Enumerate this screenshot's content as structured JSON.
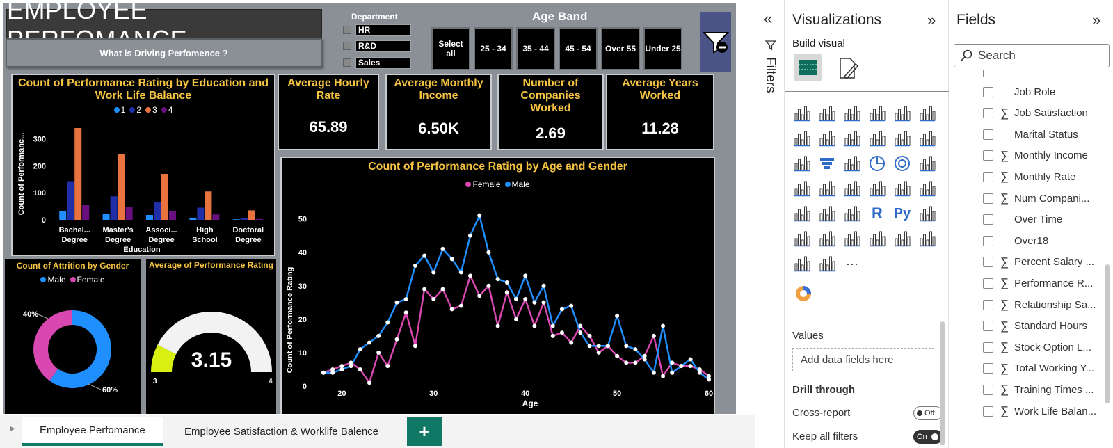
{
  "report": {
    "title": "EMPLOYEE PERFOMANCE",
    "subtitle": "What is Driving Perfomence ?"
  },
  "department": {
    "title": "Department",
    "items": [
      "HR",
      "R&D",
      "Sales"
    ]
  },
  "age_band": {
    "title": "Age Band",
    "buttons": [
      "Select all",
      "25 - 34",
      "35 - 44",
      "45 - 54",
      "Over 55",
      "Under 25"
    ]
  },
  "kpis": [
    {
      "title": "Average Hourly Rate",
      "value": "65.89"
    },
    {
      "title": "Average Monthly Income",
      "value": "6.50K"
    },
    {
      "title": "Number of Companies Worked",
      "value": "2.69"
    },
    {
      "title": "Average Years Worked",
      "value": "11.28"
    }
  ],
  "colors": {
    "rating1": "#1f8fff",
    "rating2": "#1f2fa8",
    "rating3": "#e8733f",
    "rating4": "#6a0f7f",
    "female": "#d848b0",
    "male": "#1f8fff",
    "gauge": "#d9ef12",
    "title_gold": "#f5c342",
    "accent_green": "#117865"
  },
  "chart_data": [
    {
      "type": "bar",
      "title": "Count of Performance Rating by Education and Work Life Balance",
      "xlabel": "Education",
      "ylabel": "Count of Performanc...",
      "categories": [
        "Bachel... Degree",
        "Master's Degree",
        "Associ... Degree",
        "High School",
        "Doctoral Degree"
      ],
      "ylim": [
        0,
        340
      ],
      "yticks": [
        0,
        100,
        200,
        300
      ],
      "series": [
        {
          "name": "1",
          "values": [
            33,
            22,
            18,
            8,
            2
          ]
        },
        {
          "name": "2",
          "values": [
            143,
            87,
            65,
            45,
            6
          ]
        },
        {
          "name": "3",
          "values": [
            340,
            243,
            170,
            105,
            35
          ]
        },
        {
          "name": "4",
          "values": [
            55,
            48,
            32,
            20,
            3
          ]
        }
      ]
    },
    {
      "type": "pie",
      "title": "Count of Attrition by Gender",
      "series": [
        {
          "name": "Male",
          "value": 60,
          "label": "60%"
        },
        {
          "name": "Female",
          "value": 40,
          "label": "40%"
        }
      ]
    },
    {
      "type": "gauge",
      "title": "Average of Performance Rating",
      "value": 3.15,
      "value_label": "3.15",
      "min": 3,
      "max": 4,
      "min_label": "3",
      "max_label": "4"
    },
    {
      "type": "line",
      "title": "Count of Performance Rating by Age and Gender",
      "xlabel": "Age",
      "ylabel": "Count of Performance Rating",
      "xlim": [
        18,
        60
      ],
      "ylim": [
        0,
        52
      ],
      "xticks": [
        20,
        30,
        40,
        50,
        60
      ],
      "yticks": [
        0,
        10,
        20,
        30,
        40,
        50
      ],
      "x": [
        18,
        19,
        20,
        21,
        22,
        23,
        24,
        25,
        26,
        27,
        28,
        29,
        30,
        31,
        32,
        33,
        34,
        35,
        36,
        37,
        38,
        39,
        40,
        41,
        42,
        43,
        44,
        45,
        46,
        47,
        48,
        49,
        50,
        51,
        52,
        53,
        54,
        55,
        56,
        57,
        58,
        59,
        60
      ],
      "series": [
        {
          "name": "Female",
          "values": [
            4,
            5,
            6,
            7,
            5,
            1,
            10,
            6,
            14,
            22,
            12,
            29,
            26,
            29,
            23,
            24,
            33,
            27,
            30,
            18,
            28,
            20,
            26,
            18,
            25,
            15,
            16,
            13,
            18,
            15,
            10,
            12,
            9,
            7,
            7,
            9,
            15,
            3,
            7,
            6,
            6,
            5,
            3
          ]
        },
        {
          "name": "Male",
          "values": [
            4,
            4,
            5,
            6,
            11,
            13,
            15,
            19,
            25,
            26,
            36,
            39,
            34,
            41,
            38,
            34,
            45,
            51,
            40,
            32,
            31,
            26,
            33,
            25,
            30,
            18,
            23,
            24,
            16,
            12,
            12,
            12,
            21,
            12,
            11,
            8,
            4,
            18,
            4,
            6,
            8,
            4,
            2
          ]
        }
      ]
    }
  ],
  "tabs": {
    "items": [
      "Employee Perfomance",
      "Employee Satisfaction & Worklife Balence"
    ],
    "add_label": "+"
  },
  "filters_pane": {
    "label": "Filters"
  },
  "viz_pane": {
    "title": "Visualizations",
    "build_visual": "Build visual",
    "more_label": "···",
    "values_label": "Values",
    "add_data_placeholder": "Add data fields here",
    "drill_through": "Drill through",
    "cross_report": "Cross-report",
    "cross_report_toggle": "Off",
    "keep_all_filters": "Keep all filters",
    "keep_all_filters_toggle": "On"
  },
  "fields_pane": {
    "title": "Fields",
    "search_placeholder": "Search",
    "items": [
      {
        "label": "Job Role",
        "sigma": ""
      },
      {
        "label": "Job Satisfaction",
        "sigma": "∑"
      },
      {
        "label": "Marital Status",
        "sigma": ""
      },
      {
        "label": "Monthly Income",
        "sigma": "∑"
      },
      {
        "label": "Monthly Rate",
        "sigma": "∑"
      },
      {
        "label": "Num Compani...",
        "sigma": "∑"
      },
      {
        "label": "Over Time",
        "sigma": ""
      },
      {
        "label": "Over18",
        "sigma": ""
      },
      {
        "label": "Percent Salary ...",
        "sigma": "∑"
      },
      {
        "label": "Performance R...",
        "sigma": "∑"
      },
      {
        "label": "Relationship Sa...",
        "sigma": "∑"
      },
      {
        "label": "Standard Hours",
        "sigma": "∑"
      },
      {
        "label": "Stock Option L...",
        "sigma": "∑"
      },
      {
        "label": "Total Working Y...",
        "sigma": "∑"
      },
      {
        "label": "Training Times ...",
        "sigma": "∑"
      },
      {
        "label": "Work Life Balan...",
        "sigma": "∑"
      }
    ]
  }
}
